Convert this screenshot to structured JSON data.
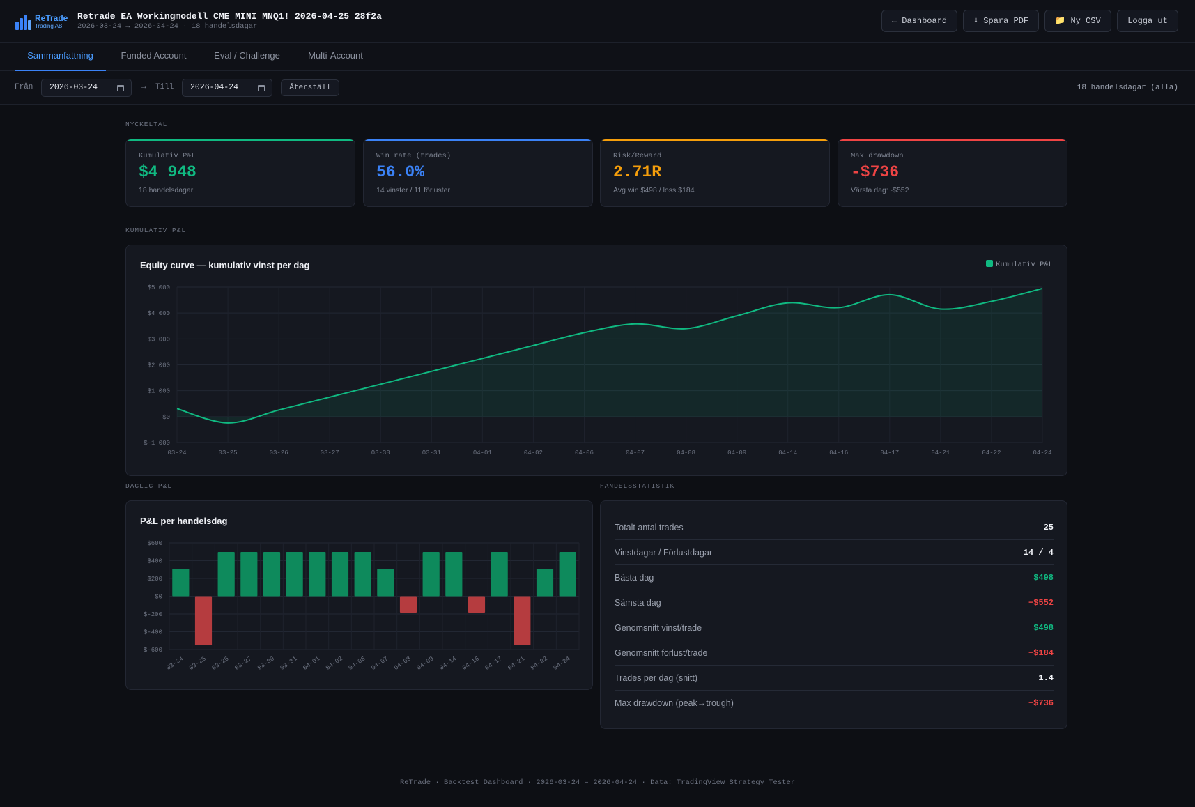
{
  "header": {
    "brand": "ReTrade",
    "brand_sub": "Trading AB",
    "title": "Retrade_EA_Workingmodell_CME_MINI_MNQ1!_2026-04-25_28f2a",
    "subtitle": "2026-03-24 → 2026-04-24 · 18 handelsdagar",
    "buttons": {
      "dashboard": "← Dashboard",
      "pdf": "⬇ Spara PDF",
      "csv": "📁 Ny CSV",
      "logout": "Logga ut"
    }
  },
  "tabs": [
    "Sammanfattning",
    "Funded Account",
    "Eval / Challenge",
    "Multi-Account"
  ],
  "filter": {
    "from_label": "Från",
    "from_value": "2026-03-24",
    "arrow": "→",
    "to_label": "Till",
    "to_value": "2026-04-24",
    "reset_label": "Återställ",
    "summary": "18 handelsdagar (alla)"
  },
  "sections": {
    "kpi": "NYCKELTAL",
    "cumulative": "KUMULATIV P&L",
    "daily": "DAGLIG P&L",
    "stats": "HANDELSSTATISTIK"
  },
  "kpis": [
    {
      "label": "Kumulativ P&L",
      "value": "$4 948",
      "sub": "18 handelsdagar",
      "color": "#10b981"
    },
    {
      "label": "Win rate (trades)",
      "value": "56.0%",
      "sub": "14 vinster / 11 förluster",
      "color": "#3b82f6"
    },
    {
      "label": "Risk/Reward",
      "value": "2.71R",
      "sub": "Avg win $498 / loss $184",
      "color": "#f59e0b"
    },
    {
      "label": "Max drawdown",
      "value": "-$736",
      "sub": "Värsta dag: -$552",
      "color": "#ef4444"
    }
  ],
  "equity": {
    "title": "Equity curve — kumulativ vinst per dag",
    "legend": "Kumulativ P&L"
  },
  "daily": {
    "title": "P&L per handelsdag"
  },
  "stats": [
    {
      "label": "Totalt antal trades",
      "value": "25",
      "tone": "neutral"
    },
    {
      "label": "Vinstdagar / Förlustdagar",
      "value": "14 / 4",
      "tone": "neutral"
    },
    {
      "label": "Bästa dag",
      "value": "$498",
      "tone": "pos"
    },
    {
      "label": "Sämsta dag",
      "value": "−$552",
      "tone": "neg"
    },
    {
      "label": "Genomsnitt vinst/trade",
      "value": "$498",
      "tone": "pos"
    },
    {
      "label": "Genomsnitt förlust/trade",
      "value": "−$184",
      "tone": "neg"
    },
    {
      "label": "Trades per dag (snitt)",
      "value": "1.4",
      "tone": "neutral"
    },
    {
      "label": "Max drawdown (peak→trough)",
      "value": "−$736",
      "tone": "neg"
    }
  ],
  "footer": "ReTrade · Backtest Dashboard · 2026-03-24 – 2026-04-24 · Data: TradingView Strategy Tester",
  "chart_data": [
    {
      "type": "area",
      "title": "Equity curve — kumulativ vinst per dag",
      "legend": [
        "Kumulativ P&L"
      ],
      "x": [
        "03-24",
        "03-25",
        "03-26",
        "03-27",
        "03-30",
        "03-31",
        "04-01",
        "04-02",
        "04-06",
        "04-07",
        "04-08",
        "04-09",
        "04-14",
        "04-16",
        "04-17",
        "04-21",
        "04-22",
        "04-24"
      ],
      "series": [
        {
          "name": "Kumulativ P&L",
          "values": [
            310,
            -242,
            256,
            754,
            1252,
            1750,
            2248,
            2746,
            3244,
            3580,
            3396,
            3894,
            4392,
            4208,
            4706,
            4154,
            4450,
            4948
          ]
        }
      ],
      "y_ticks": [
        "$-1 000",
        "$0",
        "$1 000",
        "$2 000",
        "$3 000",
        "$4 000",
        "$5 000"
      ],
      "ylim": [
        -1000,
        5000
      ],
      "grid": true,
      "legend_position": "top-right",
      "color": "#10b981"
    },
    {
      "type": "bar",
      "title": "P&L per handelsdag",
      "categories": [
        "03-24",
        "03-25",
        "03-26",
        "03-27",
        "03-30",
        "03-31",
        "04-01",
        "04-02",
        "04-06",
        "04-07",
        "04-08",
        "04-09",
        "04-14",
        "04-16",
        "04-17",
        "04-21",
        "04-22",
        "04-24"
      ],
      "values": [
        310,
        -552,
        498,
        498,
        498,
        498,
        498,
        498,
        498,
        310,
        -184,
        498,
        498,
        -184,
        498,
        -552,
        310,
        498
      ],
      "y_ticks": [
        "$-600",
        "$-400",
        "$-200",
        "$0",
        "$200",
        "$400",
        "$600"
      ],
      "ylim": [
        -600,
        600
      ],
      "grid": true,
      "pos_color": "#0e8a5c",
      "neg_color": "#b53c3f"
    }
  ]
}
